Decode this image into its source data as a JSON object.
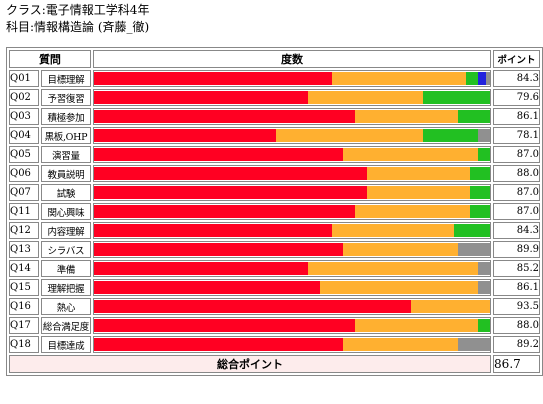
{
  "header": {
    "class_line": "クラス:電子情報工学科4年",
    "subject_line": "科目:情報構造論 (斉藤_徹)"
  },
  "table_headers": {
    "question": "質問",
    "distribution": "度数",
    "points": "ポイント"
  },
  "colors": {
    "red": "#ff0022",
    "orange": "#ffb030",
    "green": "#22c022",
    "blue": "#2222dd",
    "gray": "#909090"
  },
  "chart_data": {
    "type": "bar",
    "stacked": true,
    "orientation": "horizontal",
    "categories": [
      "Q01",
      "Q02",
      "Q03",
      "Q04",
      "Q05",
      "Q06",
      "Q07",
      "Q11",
      "Q12",
      "Q13",
      "Q14",
      "Q15",
      "Q16",
      "Q17",
      "Q18"
    ],
    "labels": [
      "目標理解",
      "予習復習",
      "積極参加",
      "黒板,OHP",
      "演習量",
      "教員説明",
      "試験",
      "関心興味",
      "内容理解",
      "シラバス",
      "準備",
      "理解把握",
      "熱心",
      "総合満足度",
      "目標達成"
    ],
    "points": [
      "84.3",
      "79.6",
      "86.1",
      "78.1",
      "87.0",
      "88.0",
      "87.0",
      "87.0",
      "84.3",
      "89.9",
      "85.2",
      "86.1",
      "93.5",
      "88.0",
      "89.2"
    ],
    "series": [
      {
        "color_key": "red",
        "values": [
          0.6,
          0.54,
          0.66,
          0.46,
          0.63,
          0.69,
          0.69,
          0.66,
          0.6,
          0.63,
          0.54,
          0.57,
          0.8,
          0.66,
          0.63
        ]
      },
      {
        "color_key": "orange",
        "values": [
          0.34,
          0.29,
          0.26,
          0.37,
          0.34,
          0.26,
          0.26,
          0.29,
          0.31,
          0.29,
          0.43,
          0.4,
          0.2,
          0.31,
          0.29
        ]
      },
      {
        "color_key": "green",
        "values": [
          0.03,
          0.17,
          0.08,
          0.14,
          0.03,
          0.05,
          0.05,
          0.05,
          0.09,
          0.0,
          0.0,
          0.0,
          0.0,
          0.03,
          0.0
        ]
      },
      {
        "color_key": "blue",
        "values": [
          0.02,
          0.0,
          0.0,
          0.0,
          0.0,
          0.0,
          0.0,
          0.0,
          0.0,
          0.0,
          0.0,
          0.0,
          0.0,
          0.0,
          0.0
        ]
      },
      {
        "color_key": "gray",
        "values": [
          0.01,
          0.0,
          0.0,
          0.03,
          0.0,
          0.0,
          0.0,
          0.0,
          0.0,
          0.08,
          0.03,
          0.03,
          0.0,
          0.0,
          0.08
        ]
      }
    ]
  },
  "total": {
    "label": "総合ポイント",
    "value": "86.7"
  }
}
